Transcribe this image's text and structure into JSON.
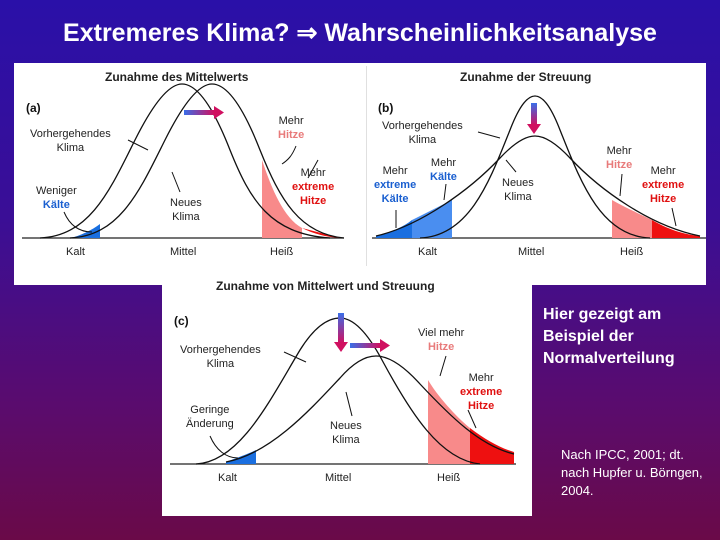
{
  "slide": {
    "title": "Extremeres Klima? ⇒ Wahrscheinlichkeitsanalyse",
    "side_text": "Hier gezeigt am Beispiel der Normalverteilung",
    "source": "Nach IPCC, 2001; dt. nach Hupfer u. Börngen, 2004."
  },
  "panel_a": {
    "heading": "Zunahme des Mittelwerts",
    "tag": "(a)",
    "labels": {
      "previous_1": "Vorhergehendes",
      "previous_2": "Klima",
      "less_1": "Weniger",
      "less_2": "Kälte",
      "new_1": "Neues",
      "new_2": "Klima",
      "more_1": "Mehr",
      "more_2": "Hitze",
      "more_extreme_1": "Mehr",
      "more_extreme_2": "extreme",
      "more_extreme_3": "Hitze"
    },
    "axis": {
      "cold": "Kalt",
      "mean": "Mittel",
      "hot": "Heiß"
    }
  },
  "panel_b": {
    "heading": "Zunahme der Streuung",
    "tag": "(b)",
    "labels": {
      "previous_1": "Vorhergehendes",
      "previous_2": "Klima",
      "mcold_1": "Mehr",
      "mcold_2": "extreme",
      "mcold_3": "Kälte",
      "more_cold_1": "Mehr",
      "more_cold_2": "Kälte",
      "new_1": "Neues",
      "new_2": "Klima",
      "more_heat_1": "Mehr",
      "more_heat_2": "Hitze",
      "mheat_1": "Mehr",
      "mheat_2": "extreme",
      "mheat_3": "Hitze"
    },
    "axis": {
      "cold": "Kalt",
      "mean": "Mittel",
      "hot": "Heiß"
    }
  },
  "panel_c": {
    "heading": "Zunahme von Mittelwert und Streuung",
    "tag": "(c)",
    "labels": {
      "previous_1": "Vorhergehendes",
      "previous_2": "Klima",
      "small_1": "Geringe",
      "small_2": "Änderung",
      "new_1": "Neues",
      "new_2": "Klima",
      "much_1": "Viel mehr",
      "much_2": "Hitze",
      "extreme_1": "Mehr",
      "extreme_2": "extreme",
      "extreme_3": "Hitze"
    },
    "axis": {
      "cold": "Kalt",
      "mean": "Mittel",
      "hot": "Heiß"
    }
  },
  "colors": {
    "background_top": "#2a10a8",
    "background_bottom": "#6a0a48",
    "cold_blue": "#1a6fe0",
    "hot_pink": "#f88a8a",
    "extreme_red": "#ee1010",
    "arrow_purple": "#7a3cc8"
  }
}
